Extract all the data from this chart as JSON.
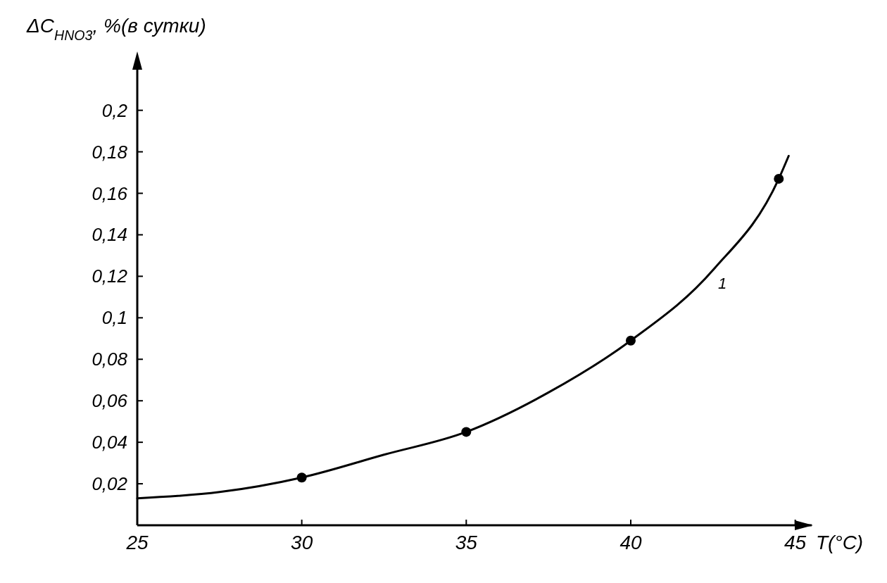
{
  "chart_data": {
    "type": "line",
    "xlabel": "T(°C)",
    "ylabel": "ΔC$_{HNO3}$, %(в сутки)",
    "xlim": [
      25,
      45.5
    ],
    "ylim": [
      0,
      0.225
    ],
    "xticks": [
      25,
      30,
      35,
      40,
      45
    ],
    "yticks": [
      {
        "value": 0.02,
        "label": "0,02"
      },
      {
        "value": 0.04,
        "label": "0,04"
      },
      {
        "value": 0.06,
        "label": "0,06"
      },
      {
        "value": 0.08,
        "label": "0,08"
      },
      {
        "value": 0.1,
        "label": "0,1"
      },
      {
        "value": 0.12,
        "label": "0,12"
      },
      {
        "value": 0.14,
        "label": "0,14"
      },
      {
        "value": 0.16,
        "label": "0,16"
      },
      {
        "value": 0.18,
        "label": "0,18"
      },
      {
        "value": 0.2,
        "label": "0,2"
      }
    ],
    "grid": false,
    "series": [
      {
        "color": "#000000",
        "marker": "none",
        "x": [
          25,
          27.5,
          30,
          32.5,
          35,
          37.5,
          40,
          42.5,
          44.5,
          44.8
        ],
        "values": [
          0.013,
          0.016,
          0.023,
          0.034,
          0.045,
          0.064,
          0.089,
          0.123,
          0.167,
          0.178
        ]
      },
      {
        "type": "scatter",
        "color": "#000000",
        "marker": "circle",
        "x": [
          30,
          35,
          40,
          44.5
        ],
        "values": [
          0.023,
          0.045,
          0.089,
          0.167
        ]
      }
    ],
    "annotations": [
      "1"
    ]
  }
}
